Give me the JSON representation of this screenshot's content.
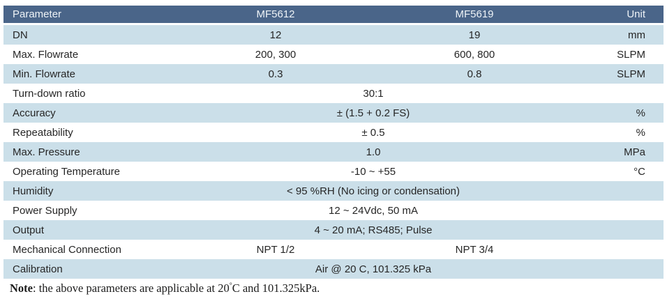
{
  "table": {
    "columns": [
      "Parameter",
      "MF5612",
      "MF5619",
      "Unit"
    ],
    "rows": [
      {
        "param": "DN",
        "type": "split",
        "v1": "12",
        "v2": "19",
        "unit": "mm"
      },
      {
        "param": "Max. Flowrate",
        "type": "split",
        "v1": "200, 300",
        "v2": "600, 800",
        "unit": "SLPM"
      },
      {
        "param": "Min. Flowrate",
        "type": "split",
        "v1": "0.3",
        "v2": "0.8",
        "unit": "SLPM"
      },
      {
        "param": "Turn-down ratio",
        "type": "merged",
        "value": "30:1",
        "unit": ""
      },
      {
        "param": "Accuracy",
        "type": "merged",
        "value": "± (1.5 + 0.2 FS)",
        "unit": "%"
      },
      {
        "param": "Repeatability",
        "type": "merged",
        "value": "± 0.5",
        "unit": "%"
      },
      {
        "param": "Max. Pressure",
        "type": "merged",
        "value": "1.0",
        "unit": "MPa"
      },
      {
        "param": "Operating Temperature",
        "type": "merged",
        "value": "-10 ~ +55",
        "unit": "°C"
      },
      {
        "param": "Humidity",
        "type": "merged",
        "value": "< 95 %RH (No icing or condensation)",
        "unit": ""
      },
      {
        "param": "Power Supply",
        "type": "merged",
        "value": "12 ~ 24Vdc, 50 mA",
        "unit": ""
      },
      {
        "param": "Output",
        "type": "merged",
        "value": "4 ~ 20 mA; RS485; Pulse",
        "unit": ""
      },
      {
        "param": "Mechanical Connection",
        "type": "split",
        "v1": "NPT 1/2",
        "v2": "NPT 3/4",
        "unit": ""
      },
      {
        "param": "Calibration",
        "type": "merged",
        "value": "Air @ 20 C, 101.325 kPa",
        "unit": ""
      }
    ]
  },
  "note": {
    "label": "Note",
    "body": ": the above parameters are applicable at 20",
    "degree": "°",
    "suffix": "C and 101.325kPa."
  },
  "colors": {
    "header_bg": "#4a6589",
    "row_alt_bg": "#cbdfe9",
    "header_text": "#eef3f7",
    "body_text": "#262626"
  }
}
